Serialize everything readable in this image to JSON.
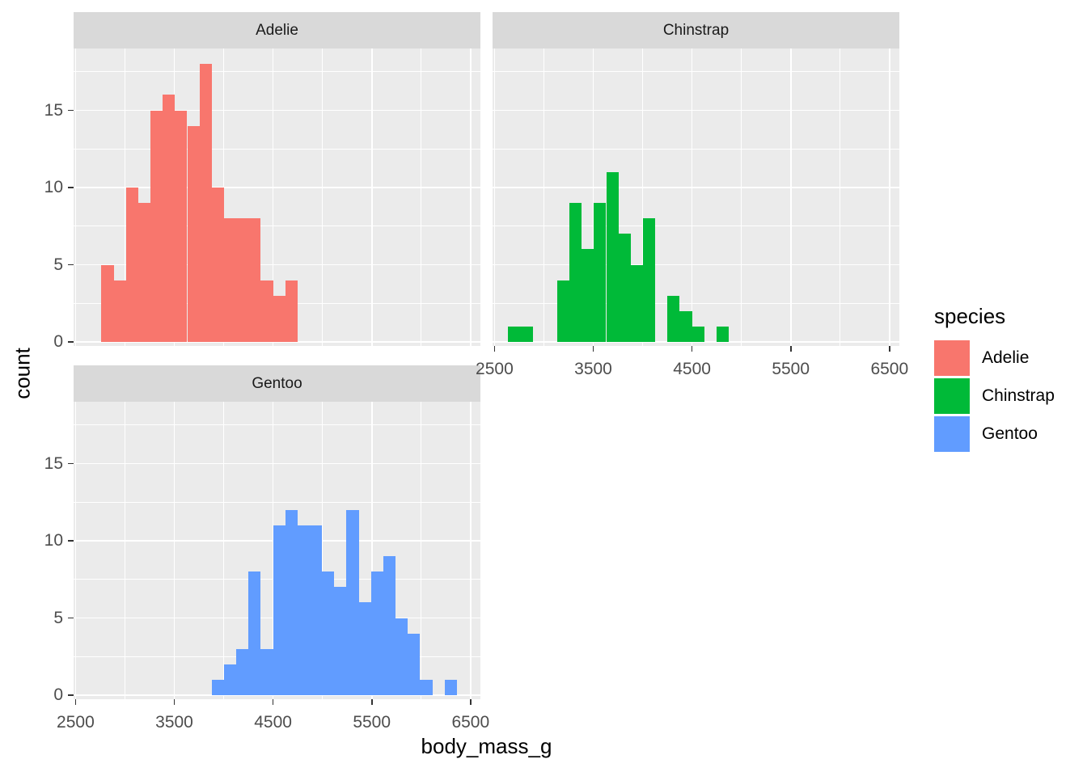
{
  "chart_data": {
    "type": "bar",
    "subtype": "faceted-histogram",
    "title": "",
    "xlabel": "body_mass_g",
    "ylabel": "count",
    "x_ticks": [
      2500,
      3500,
      4500,
      5500,
      6500
    ],
    "x_minor": [
      3000,
      4000,
      5000,
      6000
    ],
    "y_ticks": [
      0,
      5,
      10,
      15
    ],
    "y_minor": [
      2.5,
      7.5,
      12.5,
      17.5
    ],
    "x_domain": [
      2480,
      6600
    ],
    "y_domain": [
      0,
      19
    ],
    "bin_start": 2637.9,
    "bin_width": 124.1,
    "grid": true,
    "legend_position": "right",
    "facets": [
      {
        "label": "Adelie",
        "row": 0,
        "col": 0,
        "series": "Adelie"
      },
      {
        "label": "Chinstrap",
        "row": 0,
        "col": 1,
        "series": "Chinstrap"
      },
      {
        "label": "Gentoo",
        "row": 1,
        "col": 0,
        "series": "Gentoo"
      }
    ],
    "series": [
      {
        "name": "Adelie",
        "color": "#F8766D",
        "counts": [
          0,
          5,
          4,
          10,
          9,
          15,
          16,
          15,
          14,
          18,
          10,
          8,
          8,
          8,
          4,
          3,
          4,
          0,
          0,
          0,
          0,
          0,
          0,
          0,
          0,
          0,
          0,
          0,
          0,
          0
        ]
      },
      {
        "name": "Chinstrap",
        "color": "#00BA38",
        "counts": [
          1,
          1,
          0,
          0,
          4,
          9,
          6,
          9,
          11,
          7,
          5,
          8,
          0,
          3,
          2,
          1,
          0,
          1,
          0,
          0,
          0,
          0,
          0,
          0,
          0,
          0,
          0,
          0,
          0,
          0
        ]
      },
      {
        "name": "Gentoo",
        "color": "#619CFF",
        "counts": [
          0,
          0,
          0,
          0,
          0,
          0,
          0,
          0,
          0,
          0,
          1,
          2,
          3,
          8,
          3,
          11,
          12,
          11,
          11,
          8,
          7,
          12,
          6,
          8,
          9,
          5,
          4,
          1,
          0,
          1
        ]
      }
    ]
  },
  "legend": {
    "title": "species",
    "items": [
      {
        "label": "Adelie",
        "color": "#F8766D"
      },
      {
        "label": "Chinstrap",
        "color": "#00BA38"
      },
      {
        "label": "Gentoo",
        "color": "#619CFF"
      }
    ]
  },
  "theme": {
    "background": "#FFFFFF",
    "panel_background": "#EBEBEB",
    "strip_background": "#D9D9D9",
    "gridline_color": "#FFFFFF",
    "axis_text_color": "#4D4D4D",
    "strip_text_color": "#1A1A1A",
    "tick_mark_color": "#333333",
    "title_text_color": "#000000"
  }
}
